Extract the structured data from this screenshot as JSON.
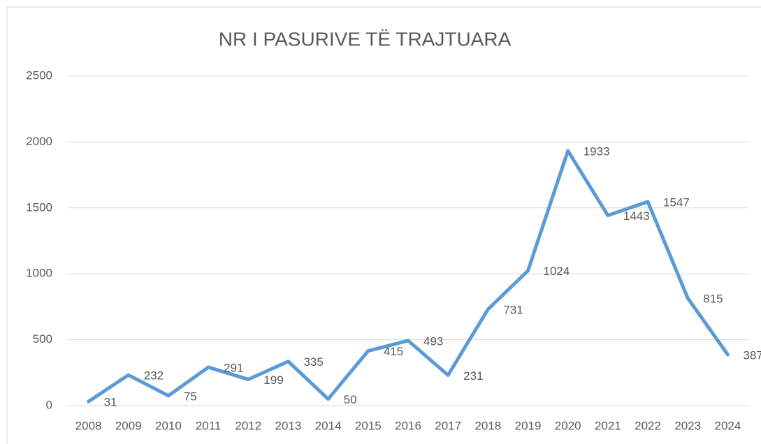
{
  "chart_data": {
    "type": "line",
    "title": "NR I PASURIVE TË TRAJTUARA",
    "categories": [
      "2008",
      "2009",
      "2010",
      "2011",
      "2012",
      "2013",
      "2014",
      "2015",
      "2016",
      "2017",
      "2018",
      "2019",
      "2020",
      "2021",
      "2022",
      "2023",
      "2024"
    ],
    "values": [
      31,
      232,
      75,
      291,
      199,
      335,
      50,
      415,
      493,
      231,
      731,
      1024,
      1933,
      1443,
      1547,
      815,
      387
    ],
    "color": "#5b9bd5",
    "ylim": [
      0,
      2500
    ],
    "yticks": [
      0,
      500,
      1000,
      1500,
      2000,
      2500
    ],
    "grid": true,
    "data_labels": true
  }
}
